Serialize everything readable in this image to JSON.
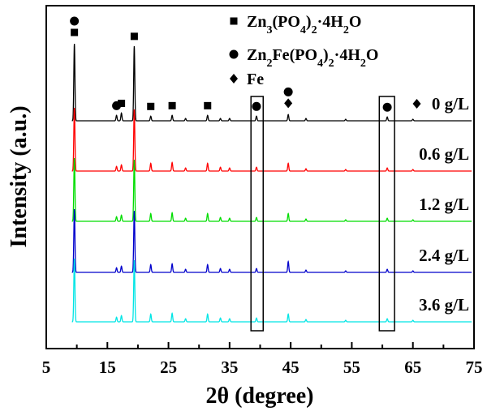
{
  "chart_data": {
    "type": "line",
    "xlabel": "2θ (degree)",
    "ylabel": "Intensity (a.u.)",
    "xlim": [
      5,
      75
    ],
    "xticks": [
      5,
      15,
      25,
      35,
      45,
      55,
      65,
      75
    ],
    "legend": {
      "placement": "top-right",
      "entries": [
        {
          "marker": "square",
          "parts": [
            [
              "Zn",
              ""
            ],
            [
              "3",
              "sub"
            ],
            [
              "(PO",
              ""
            ],
            [
              "4",
              "sub"
            ],
            [
              ")",
              ""
            ],
            [
              "2",
              "sub"
            ],
            [
              "·4H",
              ""
            ],
            [
              "2",
              "sub"
            ],
            [
              "O",
              ""
            ]
          ]
        },
        {
          "marker": "circle",
          "parts": [
            [
              "Zn",
              ""
            ],
            [
              "2",
              "sub"
            ],
            [
              "Fe(PO",
              ""
            ],
            [
              "4",
              "sub"
            ],
            [
              ")",
              ""
            ],
            [
              "2",
              "sub"
            ],
            [
              "·4H",
              ""
            ],
            [
              "2",
              "sub"
            ],
            [
              "O",
              ""
            ]
          ]
        },
        {
          "marker": "diamond",
          "parts": [
            [
              "Fe",
              ""
            ]
          ]
        }
      ]
    },
    "series": [
      {
        "name": "0 g/L",
        "color": "#000000",
        "has_diamond_prefix": true
      },
      {
        "name": "0.6 g/L",
        "color": "#ff0000",
        "has_diamond_prefix": false
      },
      {
        "name": "1.2 g/L",
        "color": "#00dd00",
        "has_diamond_prefix": false
      },
      {
        "name": "2.4 g/L",
        "color": "#0000cc",
        "has_diamond_prefix": false
      },
      {
        "name": "3.6 g/L",
        "color": "#00e5e5",
        "has_diamond_prefix": false
      }
    ],
    "peaks": [
      {
        "x": 9.6,
        "h": [
          1.0,
          0.82,
          0.82,
          0.82,
          0.82
        ]
      },
      {
        "x": 16.5,
        "h": [
          0.07,
          0.06,
          0.06,
          0.06,
          0.06
        ]
      },
      {
        "x": 17.3,
        "h": [
          0.1,
          0.08,
          0.08,
          0.08,
          0.08
        ]
      },
      {
        "x": 19.4,
        "h": [
          0.97,
          0.8,
          0.8,
          0.8,
          0.8
        ]
      },
      {
        "x": 22.1,
        "h": [
          0.06,
          0.1,
          0.1,
          0.1,
          0.1
        ]
      },
      {
        "x": 25.6,
        "h": [
          0.07,
          0.11,
          0.11,
          0.11,
          0.11
        ]
      },
      {
        "x": 27.8,
        "h": [
          0.03,
          0.04,
          0.04,
          0.04,
          0.04
        ]
      },
      {
        "x": 31.4,
        "h": [
          0.07,
          0.1,
          0.1,
          0.1,
          0.1
        ]
      },
      {
        "x": 33.5,
        "h": [
          0.03,
          0.05,
          0.05,
          0.05,
          0.05
        ]
      },
      {
        "x": 35.0,
        "h": [
          0.03,
          0.04,
          0.04,
          0.04,
          0.04
        ]
      },
      {
        "x": 39.4,
        "h": [
          0.06,
          0.05,
          0.05,
          0.05,
          0.05
        ]
      },
      {
        "x": 44.6,
        "h": [
          0.08,
          0.1,
          0.1,
          0.14,
          0.1
        ]
      },
      {
        "x": 47.5,
        "h": [
          0.03,
          0.03,
          0.03,
          0.03,
          0.03
        ]
      },
      {
        "x": 54.0,
        "h": [
          0.02,
          0.02,
          0.02,
          0.02,
          0.02
        ]
      },
      {
        "x": 60.8,
        "h": [
          0.05,
          0.04,
          0.04,
          0.04,
          0.04
        ]
      },
      {
        "x": 65.0,
        "h": [
          0.02,
          0.02,
          0.02,
          0.02,
          0.02
        ]
      }
    ],
    "phase_markers": [
      {
        "shape": "circle",
        "x": 9.6
      },
      {
        "shape": "square",
        "x": 9.6
      },
      {
        "shape": "circle",
        "x": 16.5
      },
      {
        "shape": "square",
        "x": 17.3
      },
      {
        "shape": "square",
        "x": 19.4
      },
      {
        "shape": "square",
        "x": 22.1
      },
      {
        "shape": "square",
        "x": 25.6
      },
      {
        "shape": "square",
        "x": 31.4
      },
      {
        "shape": "circle",
        "x": 39.4
      },
      {
        "shape": "circle",
        "x": 44.6
      },
      {
        "shape": "diamond",
        "x": 44.6
      },
      {
        "shape": "circle",
        "x": 60.8
      }
    ],
    "highlight_boxes": [
      {
        "x_from": 38.5,
        "x_to": 40.5
      },
      {
        "x_from": 59.5,
        "x_to": 62.0
      }
    ]
  }
}
